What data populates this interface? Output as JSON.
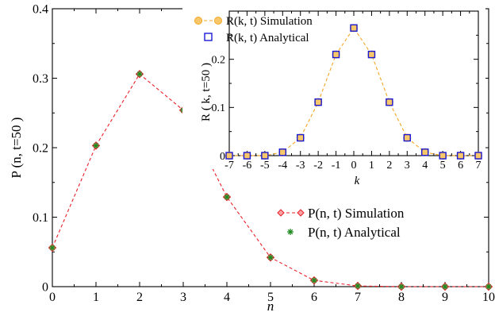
{
  "chart_data": [
    {
      "type": "line",
      "role": "main",
      "xlabel": "n",
      "ylabel": "P (n, t=50 )",
      "xlim": [
        0,
        10
      ],
      "ylim": [
        0,
        0.4
      ],
      "x_ticks": [
        0,
        1,
        2,
        3,
        4,
        5,
        6,
        7,
        8,
        9,
        10
      ],
      "x_tick_labels": [
        "0",
        "1",
        "2",
        "3",
        "4",
        "5",
        "6",
        "7",
        "8",
        "9",
        "10"
      ],
      "y_ticks": [
        0,
        0.1,
        0.2,
        0.3,
        0.4
      ],
      "y_tick_labels": [
        "0",
        "0.1",
        "0.2",
        "0.3",
        "0.4"
      ],
      "x": [
        0,
        1,
        2,
        3,
        4,
        5,
        6,
        7,
        8,
        9,
        10
      ],
      "series": [
        {
          "name": "P(n, t) Simulation",
          "color": "#e8202a",
          "marker": "diamond",
          "line": "dashed",
          "values": [
            0.056,
            0.203,
            0.306,
            0.254,
            0.129,
            0.042,
            0.009,
            0.001,
            0.0,
            0.0,
            0.0
          ]
        },
        {
          "name": "P(n, t) Analytical",
          "color": "#1f8a1f",
          "marker": "asterisk",
          "line": "none",
          "values": [
            0.056,
            0.203,
            0.306,
            0.254,
            0.129,
            0.042,
            0.009,
            0.001,
            0.0,
            0.0,
            0.0
          ]
        }
      ],
      "legend": "lower-right"
    },
    {
      "type": "line",
      "role": "inset",
      "xlabel": "k",
      "ylabel": "R ( k, t=50 )",
      "xlim": [
        -7,
        7
      ],
      "ylim": [
        0,
        0.3
      ],
      "x_ticks": [
        -7,
        -6,
        -5,
        -4,
        -3,
        -2,
        -1,
        0,
        1,
        2,
        3,
        4,
        5,
        6,
        7
      ],
      "x_tick_labels": [
        "-7",
        "-6",
        "-5",
        "-4",
        "-3",
        "-2",
        "-1",
        "0",
        "1",
        "2",
        "3",
        "4",
        "5",
        "6",
        "7"
      ],
      "y_ticks": [
        0,
        0.1,
        0.2
      ],
      "y_tick_labels": [
        "0",
        "0.1",
        "0.2"
      ],
      "x": [
        -7,
        -6,
        -5,
        -4,
        -3,
        -2,
        -1,
        0,
        1,
        2,
        3,
        4,
        5,
        6,
        7
      ],
      "series": [
        {
          "name": "R(k, t) Simulation",
          "color": "#f5a623",
          "marker": "circle",
          "line": "dashed",
          "values": [
            0.0,
            0.0,
            0.0,
            0.007,
            0.037,
            0.111,
            0.21,
            0.265,
            0.21,
            0.111,
            0.037,
            0.007,
            0.0,
            0.0,
            0.0
          ]
        },
        {
          "name": "R(k, t) Analytical",
          "color": "#1a1ad6",
          "marker": "square",
          "line": "none",
          "values": [
            0.0,
            0.0,
            0.0,
            0.007,
            0.037,
            0.111,
            0.21,
            0.265,
            0.21,
            0.111,
            0.037,
            0.007,
            0.0,
            0.0,
            0.0
          ]
        }
      ],
      "legend": "top-left"
    }
  ]
}
